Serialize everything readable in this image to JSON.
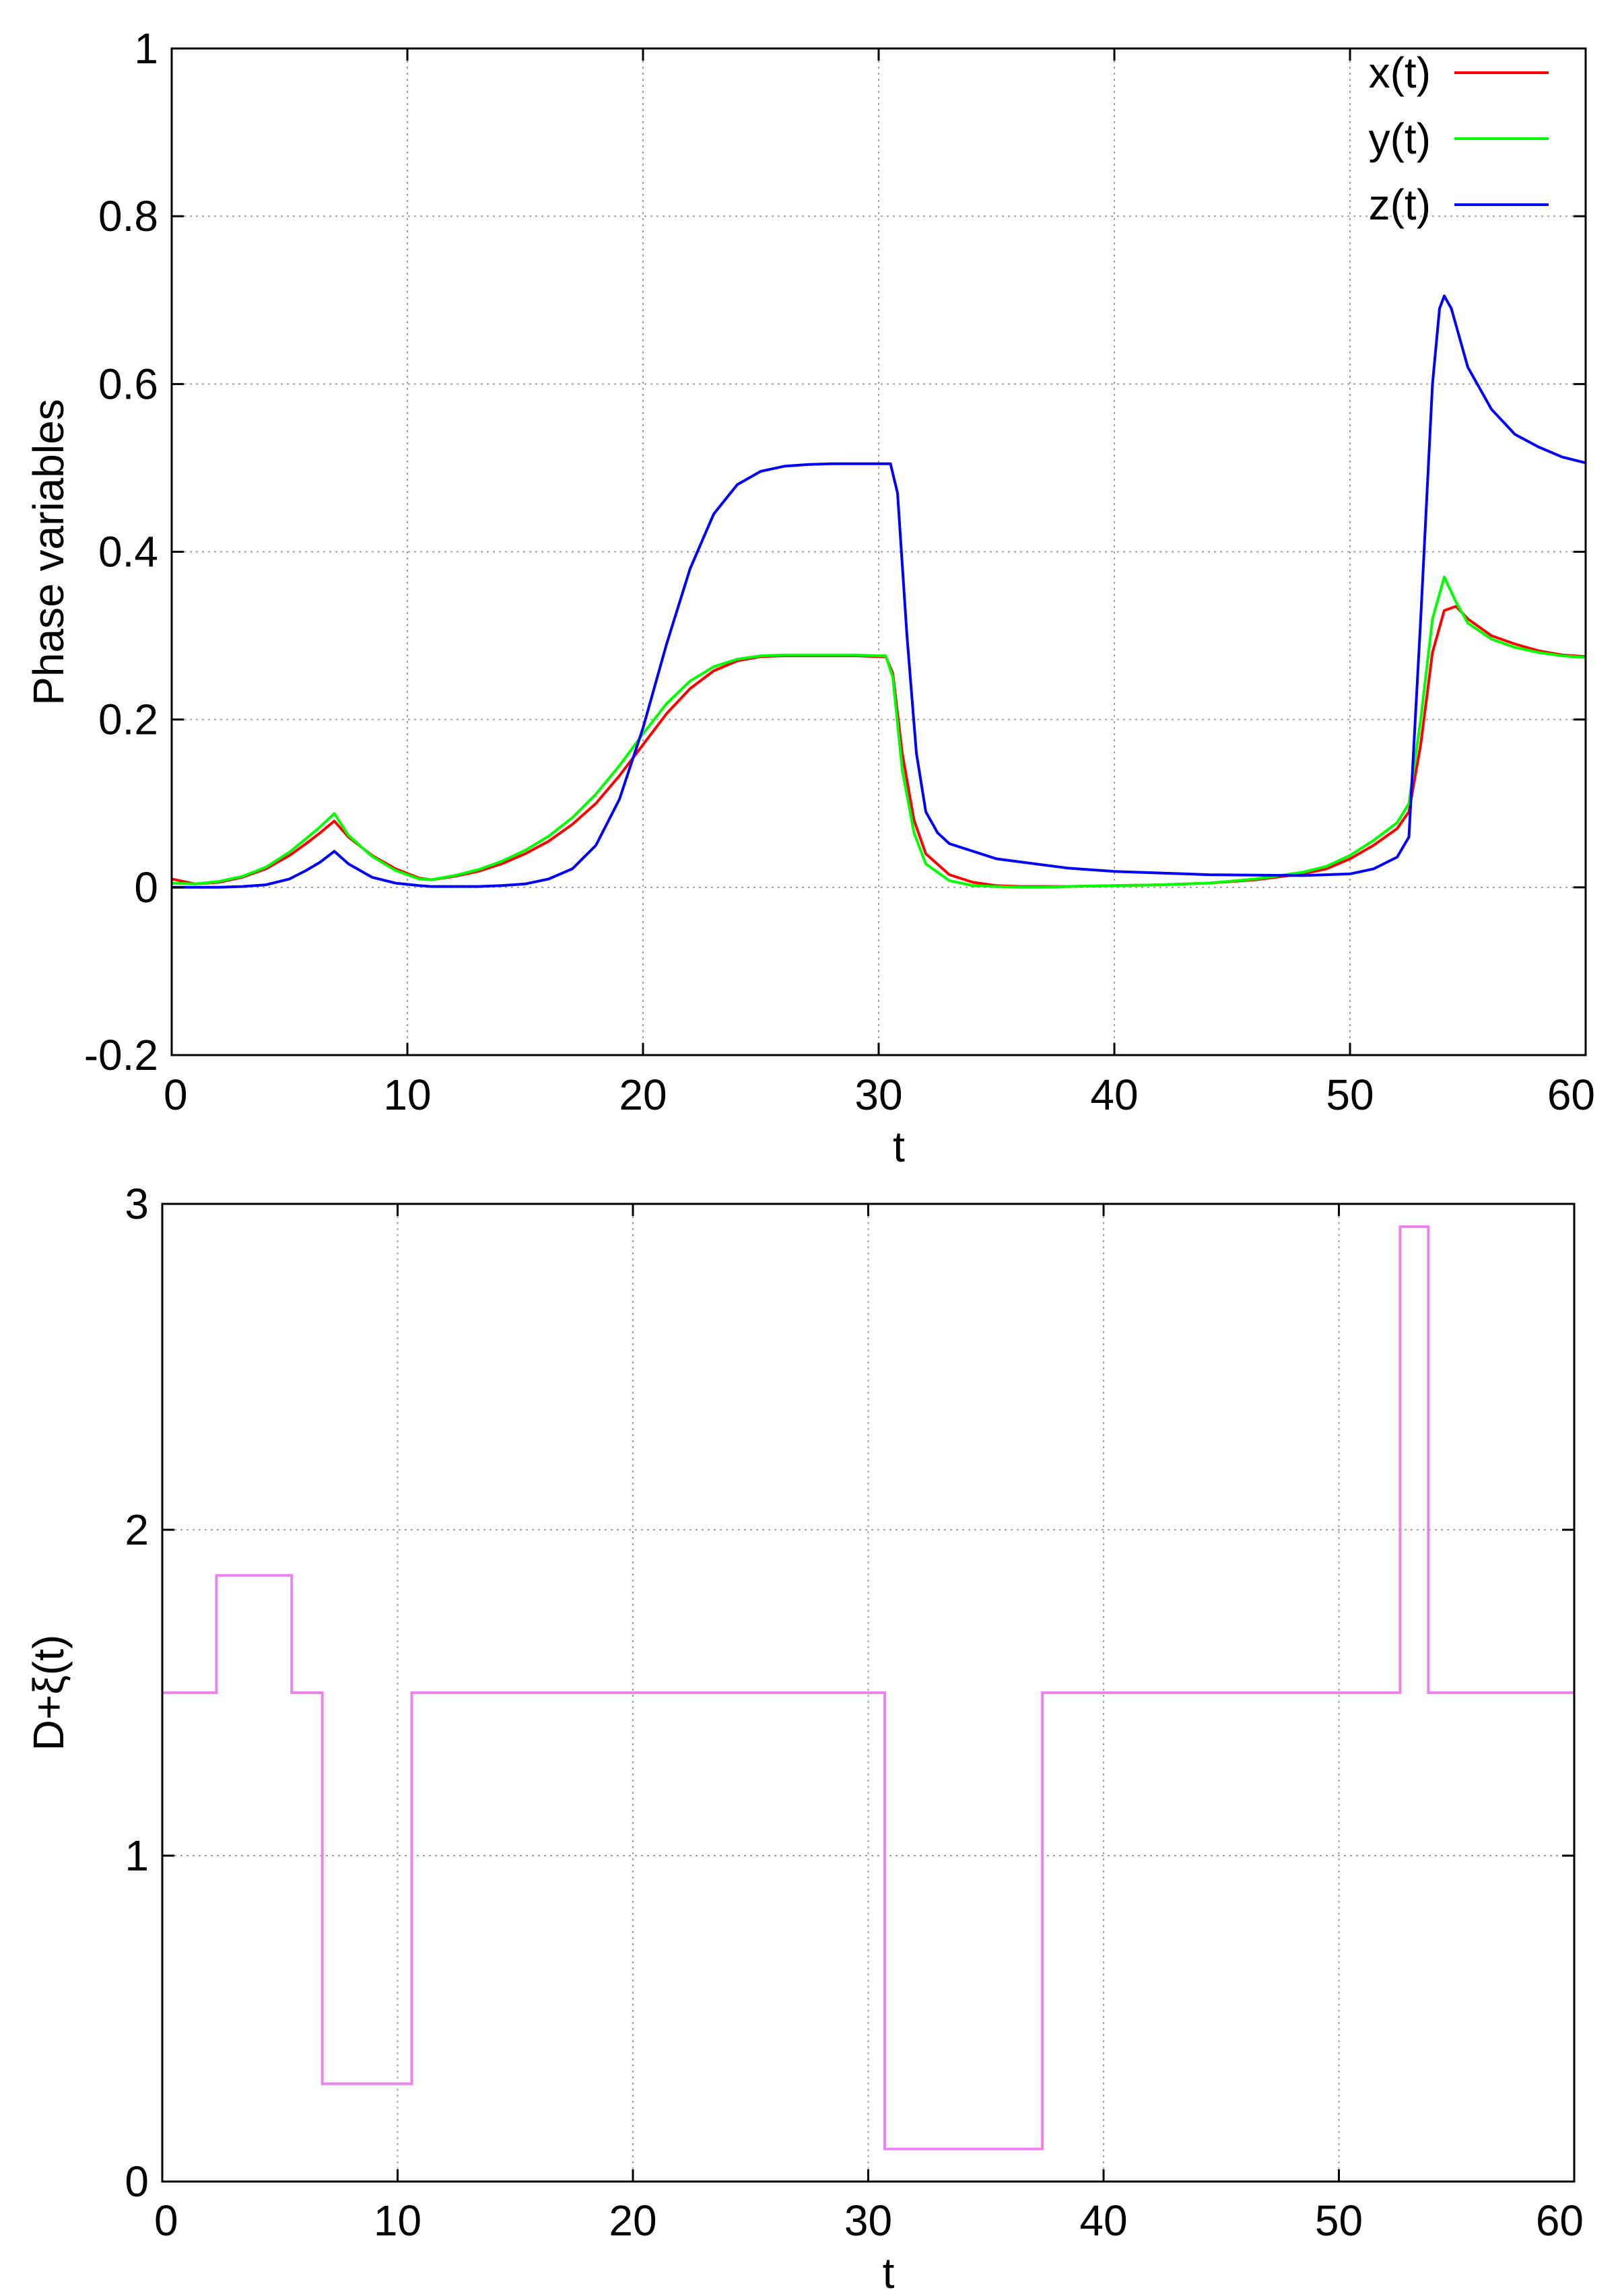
{
  "chart_data": [
    {
      "type": "line",
      "title": "",
      "xlabel": "t",
      "ylabel": "Phase variables",
      "xlim": [
        0,
        60
      ],
      "ylim": [
        -0.2,
        1
      ],
      "x_ticks": [
        "0",
        "10",
        "20",
        "30",
        "40",
        "50",
        "60"
      ],
      "y_ticks": [
        "-0.2",
        "0",
        "0.2",
        "0.4",
        "0.6",
        "0.8",
        "1"
      ],
      "grid": true,
      "legend_position": "top-right",
      "series": [
        {
          "name": "x(t)",
          "color": "#ff0000",
          "points": [
            [
              0,
              0.01
            ],
            [
              1,
              0.004
            ],
            [
              2,
              0.006
            ],
            [
              3,
              0.012
            ],
            [
              4,
              0.022
            ],
            [
              5,
              0.038
            ],
            [
              5.7,
              0.052
            ],
            [
              6.3,
              0.065
            ],
            [
              6.9,
              0.079
            ],
            [
              7.5,
              0.06
            ],
            [
              8.5,
              0.038
            ],
            [
              9.5,
              0.022
            ],
            [
              10.5,
              0.011
            ],
            [
              11,
              0.009
            ],
            [
              12,
              0.013
            ],
            [
              13,
              0.019
            ],
            [
              14,
              0.028
            ],
            [
              15,
              0.04
            ],
            [
              16,
              0.055
            ],
            [
              17,
              0.075
            ],
            [
              18,
              0.1
            ],
            [
              19,
              0.133
            ],
            [
              20,
              0.17
            ],
            [
              21,
              0.207
            ],
            [
              22,
              0.237
            ],
            [
              23,
              0.258
            ],
            [
              24,
              0.27
            ],
            [
              25,
              0.275
            ],
            [
              26,
              0.276
            ],
            [
              27,
              0.276
            ],
            [
              28,
              0.276
            ],
            [
              29,
              0.276
            ],
            [
              30,
              0.275
            ],
            [
              30.3,
              0.275
            ],
            [
              30.6,
              0.255
            ],
            [
              31,
              0.16
            ],
            [
              31.5,
              0.08
            ],
            [
              32,
              0.04
            ],
            [
              33,
              0.015
            ],
            [
              34,
              0.006
            ],
            [
              35,
              0.002
            ],
            [
              36,
              0.001
            ],
            [
              37,
              0.001
            ],
            [
              38,
              0.001
            ],
            [
              40,
              0.002
            ],
            [
              42,
              0.003
            ],
            [
              44,
              0.005
            ],
            [
              46,
              0.009
            ],
            [
              48,
              0.016
            ],
            [
              49,
              0.022
            ],
            [
              50,
              0.034
            ],
            [
              51,
              0.05
            ],
            [
              52,
              0.07
            ],
            [
              52.5,
              0.09
            ],
            [
              53,
              0.17
            ],
            [
              53.5,
              0.28
            ],
            [
              54,
              0.33
            ],
            [
              54.5,
              0.335
            ],
            [
              55,
              0.32
            ],
            [
              56,
              0.3
            ],
            [
              57,
              0.29
            ],
            [
              58,
              0.282
            ],
            [
              59,
              0.277
            ],
            [
              60,
              0.275
            ]
          ]
        },
        {
          "name": "y(t)",
          "color": "#00ff00",
          "points": [
            [
              0,
              0.005
            ],
            [
              1,
              0.004
            ],
            [
              2,
              0.007
            ],
            [
              3,
              0.013
            ],
            [
              4,
              0.024
            ],
            [
              5,
              0.042
            ],
            [
              5.7,
              0.058
            ],
            [
              6.3,
              0.072
            ],
            [
              6.9,
              0.088
            ],
            [
              7.5,
              0.062
            ],
            [
              8.5,
              0.037
            ],
            [
              9.5,
              0.02
            ],
            [
              10.5,
              0.01
            ],
            [
              11,
              0.009
            ],
            [
              12,
              0.014
            ],
            [
              13,
              0.021
            ],
            [
              14,
              0.031
            ],
            [
              15,
              0.044
            ],
            [
              16,
              0.061
            ],
            [
              17,
              0.083
            ],
            [
              18,
              0.111
            ],
            [
              19,
              0.145
            ],
            [
              20,
              0.183
            ],
            [
              21,
              0.219
            ],
            [
              22,
              0.246
            ],
            [
              23,
              0.263
            ],
            [
              24,
              0.272
            ],
            [
              25,
              0.276
            ],
            [
              26,
              0.277
            ],
            [
              27,
              0.277
            ],
            [
              28,
              0.277
            ],
            [
              29,
              0.277
            ],
            [
              30,
              0.276
            ],
            [
              30.3,
              0.276
            ],
            [
              30.6,
              0.25
            ],
            [
              31,
              0.14
            ],
            [
              31.5,
              0.065
            ],
            [
              32,
              0.028
            ],
            [
              33,
              0.008
            ],
            [
              34,
              0.002
            ],
            [
              35,
              0.001
            ],
            [
              36,
              0.0
            ],
            [
              37,
              0.0
            ],
            [
              38,
              0.001
            ],
            [
              40,
              0.002
            ],
            [
              42,
              0.003
            ],
            [
              44,
              0.005
            ],
            [
              46,
              0.01
            ],
            [
              48,
              0.018
            ],
            [
              49,
              0.025
            ],
            [
              50,
              0.038
            ],
            [
              51,
              0.056
            ],
            [
              52,
              0.077
            ],
            [
              52.5,
              0.1
            ],
            [
              53,
              0.2
            ],
            [
              53.5,
              0.32
            ],
            [
              54,
              0.37
            ],
            [
              54.5,
              0.34
            ],
            [
              55,
              0.315
            ],
            [
              56,
              0.296
            ],
            [
              57,
              0.286
            ],
            [
              58,
              0.28
            ],
            [
              59,
              0.276
            ],
            [
              60,
              0.274
            ]
          ]
        },
        {
          "name": "z(t)",
          "color": "#0000ff",
          "points": [
            [
              0,
              0.0
            ],
            [
              1,
              0.0
            ],
            [
              2,
              0.0
            ],
            [
              3,
              0.001
            ],
            [
              4,
              0.003
            ],
            [
              5,
              0.01
            ],
            [
              5.7,
              0.02
            ],
            [
              6.3,
              0.03
            ],
            [
              6.9,
              0.043
            ],
            [
              7.5,
              0.028
            ],
            [
              8.5,
              0.012
            ],
            [
              9.5,
              0.005
            ],
            [
              10.5,
              0.002
            ],
            [
              11,
              0.001
            ],
            [
              12,
              0.001
            ],
            [
              13,
              0.001
            ],
            [
              14,
              0.002
            ],
            [
              15,
              0.004
            ],
            [
              16,
              0.01
            ],
            [
              17,
              0.022
            ],
            [
              18,
              0.05
            ],
            [
              19,
              0.105
            ],
            [
              20,
              0.19
            ],
            [
              21,
              0.29
            ],
            [
              22,
              0.38
            ],
            [
              23,
              0.445
            ],
            [
              24,
              0.48
            ],
            [
              25,
              0.496
            ],
            [
              26,
              0.502
            ],
            [
              27,
              0.504
            ],
            [
              28,
              0.505
            ],
            [
              29,
              0.505
            ],
            [
              30,
              0.505
            ],
            [
              30.5,
              0.505
            ],
            [
              30.8,
              0.47
            ],
            [
              31.2,
              0.3
            ],
            [
              31.6,
              0.16
            ],
            [
              32,
              0.09
            ],
            [
              32.5,
              0.065
            ],
            [
              33,
              0.052
            ],
            [
              35,
              0.034
            ],
            [
              38,
              0.023
            ],
            [
              40,
              0.019
            ],
            [
              44,
              0.015
            ],
            [
              48,
              0.014
            ],
            [
              50,
              0.016
            ],
            [
              51,
              0.022
            ],
            [
              52,
              0.036
            ],
            [
              52.5,
              0.06
            ],
            [
              53,
              0.32
            ],
            [
              53.5,
              0.6
            ],
            [
              53.8,
              0.69
            ],
            [
              54,
              0.705
            ],
            [
              54.3,
              0.69
            ],
            [
              55,
              0.62
            ],
            [
              56,
              0.57
            ],
            [
              57,
              0.54
            ],
            [
              58,
              0.525
            ],
            [
              59,
              0.513
            ],
            [
              60,
              0.506
            ]
          ]
        }
      ]
    },
    {
      "type": "line",
      "title": "",
      "xlabel": "t",
      "ylabel": "D+ξ(t)",
      "xlim": [
        0,
        60
      ],
      "ylim": [
        0,
        3
      ],
      "x_ticks": [
        "0",
        "10",
        "20",
        "30",
        "40",
        "50",
        "60"
      ],
      "y_ticks": [
        "0",
        "1",
        "2",
        "3"
      ],
      "grid": true,
      "step": true,
      "series": [
        {
          "color": "#ee82ee",
          "points": [
            [
              0,
              1.5
            ],
            [
              2.3,
              1.5
            ],
            [
              2.3,
              1.86
            ],
            [
              5.5,
              1.86
            ],
            [
              5.5,
              1.5
            ],
            [
              6.8,
              1.5
            ],
            [
              6.8,
              0.3
            ],
            [
              10.6,
              0.3
            ],
            [
              10.6,
              1.5
            ],
            [
              30.7,
              1.5
            ],
            [
              30.7,
              0.1
            ],
            [
              37.4,
              0.1
            ],
            [
              37.4,
              1.5
            ],
            [
              52.6,
              1.5
            ],
            [
              52.6,
              2.93
            ],
            [
              53.8,
              2.93
            ],
            [
              53.8,
              1.5
            ],
            [
              60,
              1.5
            ]
          ]
        }
      ]
    }
  ]
}
